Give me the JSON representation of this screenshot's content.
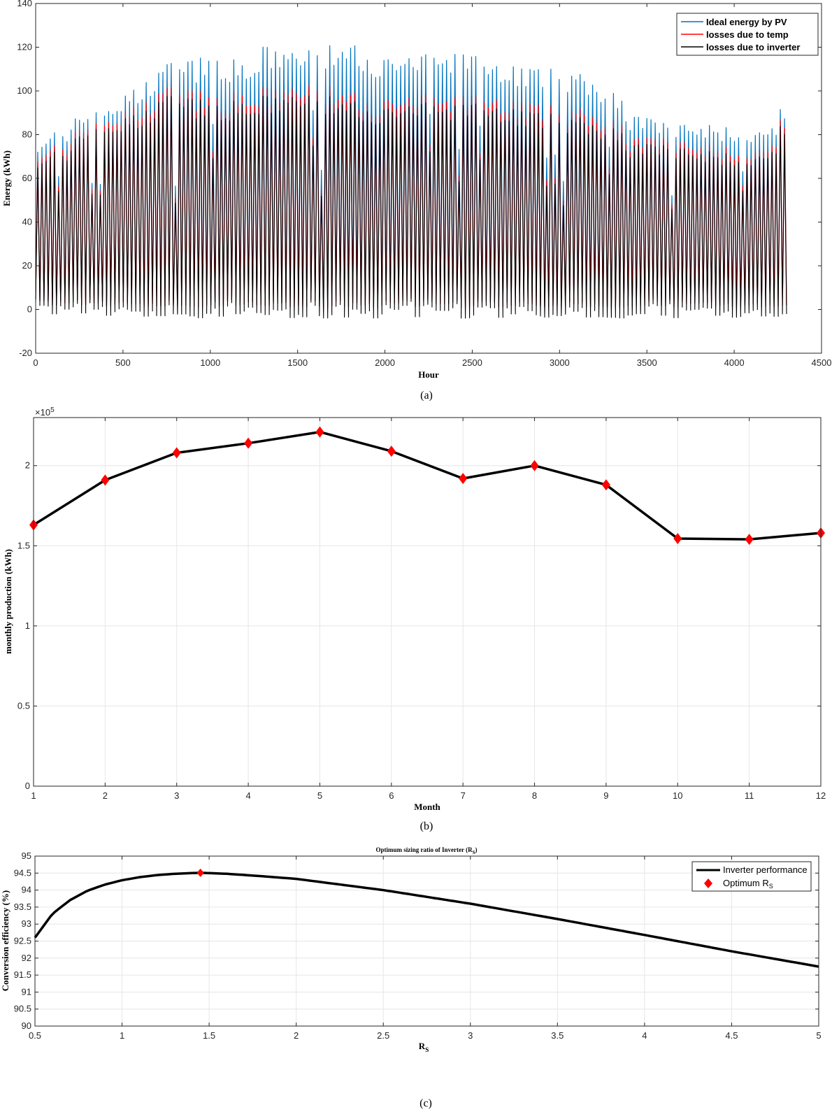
{
  "chart_data": [
    {
      "panel": "a",
      "type": "line",
      "caption": "(a)",
      "xlabel": "Hour",
      "ylabel": "Energy (kWh)",
      "xlim": [
        0,
        4500
      ],
      "ylim": [
        -20,
        140
      ],
      "xticks": [
        0,
        500,
        1000,
        1500,
        2000,
        2500,
        3000,
        3500,
        4000,
        4500
      ],
      "yticks": [
        -20,
        0,
        20,
        40,
        60,
        80,
        100,
        120,
        140
      ],
      "grid": false,
      "legend_position": "top-right",
      "series": [
        {
          "name": "Ideal energy by PV",
          "color": "#0072bd",
          "x": [
            0,
            200,
            240,
            400,
            600,
            700,
            900,
            1000,
            1200,
            1300,
            1500,
            1600,
            1800,
            2000,
            2200,
            2400,
            2600,
            2800,
            3000,
            3200,
            3350,
            3380,
            3600,
            3800,
            4000,
            4200,
            4250,
            4300
          ],
          "envelope_max": [
            80,
            85,
            93,
            95,
            103,
            113,
            115,
            118,
            112,
            121,
            120,
            121,
            122,
            116,
            117,
            118,
            115,
            112,
            110,
            106,
            97,
            91,
            86,
            85,
            84,
            82,
            93,
            90
          ]
        },
        {
          "name": "losses due to temp",
          "color": "#ff0000",
          "x": [
            0,
            200,
            240,
            400,
            600,
            700,
            900,
            1000,
            1200,
            1300,
            1500,
            1600,
            1800,
            2000,
            2200,
            2400,
            2600,
            2800,
            3000,
            3200,
            3350,
            3380,
            3600,
            3800,
            4000,
            4200,
            4250,
            4300
          ],
          "envelope_max": [
            75,
            78,
            88,
            90,
            94,
            103,
            101,
            100,
            99,
            102,
            104,
            104,
            100,
            97,
            99,
            98,
            99,
            96,
            93,
            91,
            86,
            80,
            79,
            76,
            75,
            74,
            88,
            86
          ]
        },
        {
          "name": "losses due to inverter",
          "color": "#000000",
          "x": [
            0,
            200,
            240,
            400,
            600,
            700,
            900,
            1000,
            1200,
            1300,
            1500,
            1600,
            1800,
            2000,
            2200,
            2400,
            2600,
            2800,
            3000,
            3200,
            3350,
            3380,
            3600,
            3800,
            4000,
            4200,
            4250,
            4300
          ],
          "envelope_max": [
            72,
            75,
            85,
            87,
            90,
            99,
            97,
            96,
            95,
            98,
            100,
            99,
            96,
            93,
            95,
            94,
            95,
            92,
            89,
            87,
            82,
            77,
            76,
            73,
            72,
            71,
            85,
            83
          ]
        }
      ]
    },
    {
      "panel": "b",
      "type": "line",
      "caption": "(b)",
      "xlabel": "Month",
      "ylabel": "monthly production (kWh)",
      "exponent_label": "×10",
      "exponent_power": "5",
      "xlim": [
        1,
        12
      ],
      "ylim": [
        0,
        2.3
      ],
      "xticks": [
        1,
        2,
        3,
        4,
        5,
        6,
        7,
        8,
        9,
        10,
        11,
        12
      ],
      "yticks": [
        0,
        0.5,
        1,
        1.5,
        2
      ],
      "ytick_labels": [
        "0",
        "0.5",
        "1",
        "1.5",
        "2"
      ],
      "grid": true,
      "marker_color": "#ff0000",
      "line_color": "#000000",
      "x": [
        1,
        2,
        3,
        4,
        5,
        6,
        7,
        8,
        9,
        10,
        11,
        12
      ],
      "values": [
        1.63,
        1.91,
        2.08,
        2.14,
        2.21,
        2.09,
        1.92,
        2.0,
        1.88,
        1.545,
        1.54,
        1.58
      ]
    },
    {
      "panel": "c",
      "type": "line",
      "caption": "(c)",
      "title": "Optimum sizing ratio of Inverter (R",
      "title_sub": "S",
      "title_end": ")",
      "xlabel": "R",
      "xlabel_sub": "S",
      "ylabel": "Conversion efficiency (%)",
      "xlim": [
        0.5,
        5
      ],
      "ylim": [
        90,
        95
      ],
      "xticks": [
        0.5,
        1,
        1.5,
        2,
        2.5,
        3,
        3.5,
        4,
        4.5,
        5
      ],
      "yticks": [
        90,
        90.5,
        91,
        91.5,
        92,
        92.5,
        93,
        93.5,
        94,
        94.5,
        95
      ],
      "grid": true,
      "legend_position": "top-right",
      "series": [
        {
          "name": "Inverter performance",
          "color": "#000000",
          "x": [
            0.5,
            0.6,
            0.7,
            0.8,
            0.9,
            1.0,
            1.1,
            1.2,
            1.3,
            1.4,
            1.45,
            1.6,
            1.8,
            2.0,
            2.5,
            3.0,
            3.5,
            4.0,
            4.5,
            5.0
          ],
          "values": [
            92.6,
            93.3,
            93.7,
            93.98,
            94.16,
            94.29,
            94.38,
            94.44,
            94.48,
            94.5,
            94.51,
            94.48,
            94.41,
            94.33,
            94.0,
            93.6,
            93.15,
            92.68,
            92.2,
            91.75
          ]
        },
        {
          "name": "Optimum R",
          "name_sub": "S",
          "color": "#ff0000",
          "x": [
            1.45
          ],
          "values": [
            94.51
          ]
        }
      ]
    }
  ]
}
